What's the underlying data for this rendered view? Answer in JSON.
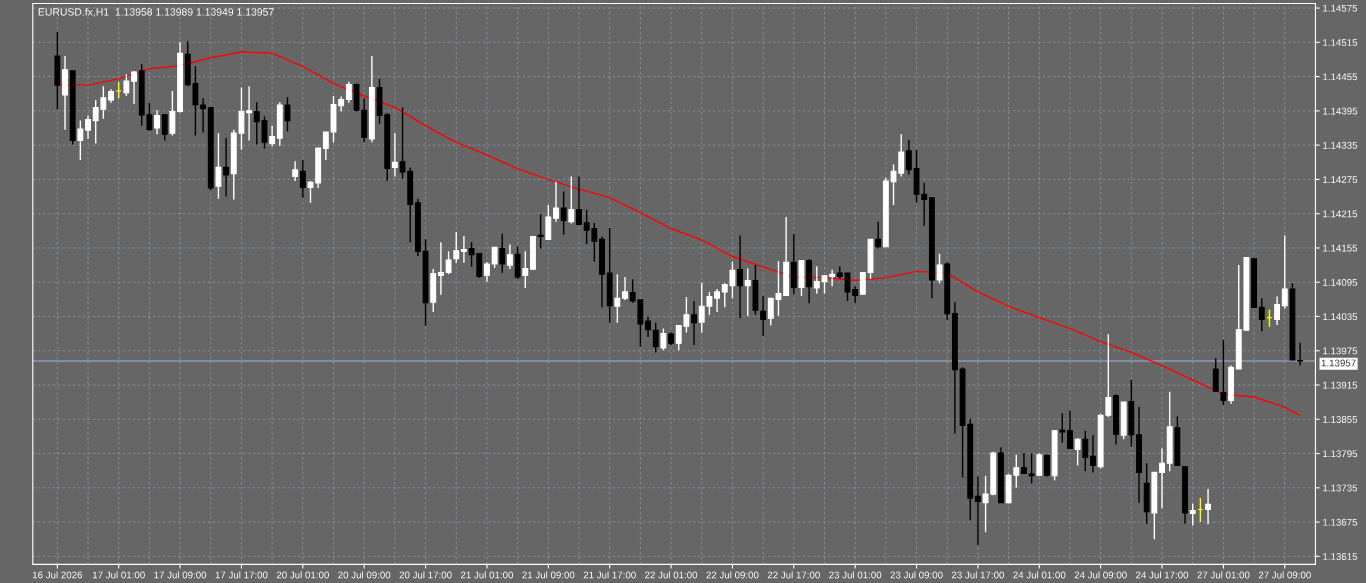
{
  "chart_data": {
    "type": "candlestick",
    "title": "EURUSD.fx,H1  1.13958 1.13989 1.13949 1.13957",
    "categories": [
      "16 Jul 2026",
      null,
      null,
      null,
      null,
      null,
      null,
      null,
      "17 Jul 01:00",
      null,
      null,
      null,
      null,
      null,
      null,
      null,
      "17 Jul 09:00",
      null,
      null,
      null,
      null,
      null,
      null,
      null,
      "17 Jul 17:00",
      null,
      null,
      null,
      null,
      null,
      null,
      null,
      "20 Jul 01:00",
      null,
      null,
      null,
      null,
      null,
      null,
      null,
      "20 Jul 09:00",
      null,
      null,
      null,
      null,
      null,
      null,
      null,
      "20 Jul 17:00",
      null,
      null,
      null,
      null,
      null,
      null,
      null,
      "21 Jul 01:00",
      null,
      null,
      null,
      null,
      null,
      null,
      null,
      "21 Jul 09:00",
      null,
      null,
      null,
      null,
      null,
      null,
      null,
      "21 Jul 17:00",
      null,
      null,
      null,
      null,
      null,
      null,
      null,
      "22 Jul 01:00",
      null,
      null,
      null,
      null,
      null,
      null,
      null,
      "22 Jul 09:00",
      null,
      null,
      null,
      null,
      null,
      null,
      null,
      "22 Jul 17:00",
      null,
      null,
      null,
      null,
      null,
      null,
      null,
      "23 Jul 01:00",
      null,
      null,
      null,
      null,
      null,
      null,
      null,
      "23 Jul 09:00",
      null,
      null,
      null,
      null,
      null,
      null,
      null,
      "23 Jul 17:00",
      null,
      null,
      null,
      null,
      null,
      null,
      null,
      "24 Jul 01:00",
      null,
      null,
      null,
      null,
      null,
      null,
      null,
      "24 Jul 09:00",
      null,
      null,
      null,
      null,
      null,
      null,
      null,
      "24 Jul 17:00",
      null,
      null,
      null,
      null,
      null,
      null,
      null,
      "27 Jul 01:00",
      null,
      null,
      null,
      null,
      null,
      null,
      null,
      "27 Jul 09:00",
      null,
      null
    ],
    "ohlc": [
      [
        1.14491,
        1.14533,
        1.14398,
        1.1444
      ],
      [
        1.14423,
        1.14491,
        1.14362,
        1.14467
      ],
      [
        1.14465,
        1.14465,
        1.14336,
        1.14343
      ],
      [
        1.14343,
        1.14378,
        1.14309,
        1.14363
      ],
      [
        1.14361,
        1.14387,
        1.14346,
        1.1438
      ],
      [
        1.14378,
        1.14414,
        1.14338,
        1.14401
      ],
      [
        1.14398,
        1.14438,
        1.14381,
        1.14418
      ],
      [
        1.14414,
        1.14433,
        1.14409,
        1.14429
      ],
      [
        1.1443,
        1.14446,
        1.14417,
        1.1443
      ],
      [
        1.14427,
        1.14459,
        1.14421,
        1.14447
      ],
      [
        1.14447,
        1.14465,
        1.14407,
        1.14463
      ],
      [
        1.14465,
        1.14477,
        1.14369,
        1.14388
      ],
      [
        1.14388,
        1.14409,
        1.14361,
        1.14362
      ],
      [
        1.14365,
        1.14396,
        1.14354,
        1.14387
      ],
      [
        1.14388,
        1.14389,
        1.14343,
        1.14354
      ],
      [
        1.14356,
        1.1443,
        1.14352,
        1.14394
      ],
      [
        1.14394,
        1.14515,
        1.14392,
        1.14496
      ],
      [
        1.14494,
        1.14517,
        1.14438,
        1.14441
      ],
      [
        1.14443,
        1.14473,
        1.14352,
        1.14406
      ],
      [
        1.14405,
        1.14417,
        1.14357,
        1.14399
      ],
      [
        1.14401,
        1.14401,
        1.14256,
        1.1426
      ],
      [
        1.14263,
        1.14356,
        1.14241,
        1.14296
      ],
      [
        1.14296,
        1.14348,
        1.14245,
        1.14283
      ],
      [
        1.14285,
        1.14362,
        1.1424,
        1.14356
      ],
      [
        1.14356,
        1.14436,
        1.14327,
        1.14394
      ],
      [
        1.14392,
        1.14438,
        1.14343,
        1.14395
      ],
      [
        1.14394,
        1.1441,
        1.14336,
        1.14376
      ],
      [
        1.14378,
        1.14385,
        1.14329,
        1.1434
      ],
      [
        1.14338,
        1.14369,
        1.14333,
        1.1435
      ],
      [
        1.14347,
        1.1441,
        1.14334,
        1.14405
      ],
      [
        1.14405,
        1.14419,
        1.14359,
        1.14378
      ],
      [
        1.1428,
        1.14307,
        1.14272,
        1.14292
      ],
      [
        1.14289,
        1.14309,
        1.14243,
        1.14261
      ],
      [
        1.14261,
        1.14272,
        1.14234,
        1.1427
      ],
      [
        1.14269,
        1.1433,
        1.1426,
        1.1433
      ],
      [
        1.14329,
        1.14358,
        1.14309,
        1.14358
      ],
      [
        1.14358,
        1.14421,
        1.1434,
        1.14406
      ],
      [
        1.14404,
        1.1442,
        1.14394,
        1.14415
      ],
      [
        1.14415,
        1.14446,
        1.14409,
        1.14441
      ],
      [
        1.14441,
        1.14443,
        1.14394,
        1.14396
      ],
      [
        1.14396,
        1.14417,
        1.1434,
        1.14349
      ],
      [
        1.14346,
        1.14491,
        1.1434,
        1.14436
      ],
      [
        1.14436,
        1.14451,
        1.14372,
        1.14387
      ],
      [
        1.14388,
        1.14391,
        1.14272,
        1.14294
      ],
      [
        1.14296,
        1.14356,
        1.1428,
        1.14305
      ],
      [
        1.14306,
        1.14401,
        1.14276,
        1.14288
      ],
      [
        1.14289,
        1.14296,
        1.14165,
        1.14231
      ],
      [
        1.14234,
        1.14241,
        1.14141,
        1.14149
      ],
      [
        1.14149,
        1.1417,
        1.14019,
        1.14059
      ],
      [
        1.1406,
        1.14118,
        1.14043,
        1.1411
      ],
      [
        1.14107,
        1.14165,
        1.14073,
        1.14112
      ],
      [
        1.14112,
        1.14149,
        1.14109,
        1.14134
      ],
      [
        1.14136,
        1.14183,
        1.14129,
        1.1415
      ],
      [
        1.14149,
        1.14176,
        1.14129,
        1.14152
      ],
      [
        1.14154,
        1.14165,
        1.14122,
        1.14143
      ],
      [
        1.14145,
        1.14145,
        1.14103,
        1.14105
      ],
      [
        1.14107,
        1.1413,
        1.14096,
        1.14127
      ],
      [
        1.14127,
        1.14156,
        1.1412,
        1.14156
      ],
      [
        1.14154,
        1.1418,
        1.14111,
        1.14127
      ],
      [
        1.14125,
        1.14161,
        1.14118,
        1.14143
      ],
      [
        1.14144,
        1.14157,
        1.14101,
        1.14104
      ],
      [
        1.14107,
        1.14149,
        1.14085,
        1.14119
      ],
      [
        1.14118,
        1.14175,
        1.14117,
        1.14175
      ],
      [
        1.14177,
        1.14214,
        1.14154,
        1.14175
      ],
      [
        1.1417,
        1.1423,
        1.14169,
        1.14209
      ],
      [
        1.14207,
        1.14271,
        1.14201,
        1.14225
      ],
      [
        1.14225,
        1.14254,
        1.14178,
        1.14203
      ],
      [
        1.14201,
        1.1428,
        1.14198,
        1.14222
      ],
      [
        1.14222,
        1.1428,
        1.14196,
        1.14196
      ],
      [
        1.14199,
        1.14222,
        1.14162,
        1.14186
      ],
      [
        1.14189,
        1.14199,
        1.14131,
        1.14167
      ],
      [
        1.1417,
        1.14175,
        1.14051,
        1.14109
      ],
      [
        1.14111,
        1.1419,
        1.14024,
        1.14054
      ],
      [
        1.14053,
        1.14109,
        1.14024,
        1.14067
      ],
      [
        1.14067,
        1.14104,
        1.14064,
        1.14078
      ],
      [
        1.14077,
        1.141,
        1.14059,
        1.14062
      ],
      [
        1.14064,
        1.14064,
        1.13982,
        1.14022
      ],
      [
        1.14027,
        1.14035,
        1.13999,
        1.14012
      ],
      [
        1.14011,
        1.14024,
        1.13972,
        1.13982
      ],
      [
        1.1398,
        1.14014,
        1.13976,
        1.14005
      ],
      [
        1.14004,
        1.14007,
        1.13985,
        1.13988
      ],
      [
        1.13988,
        1.14019,
        1.13976,
        1.14019
      ],
      [
        1.14018,
        1.14069,
        1.14007,
        1.14038
      ],
      [
        1.14038,
        1.14062,
        1.13985,
        1.14024
      ],
      [
        1.14025,
        1.14094,
        1.14007,
        1.14053
      ],
      [
        1.14053,
        1.14078,
        1.14038,
        1.1407
      ],
      [
        1.14067,
        1.14083,
        1.14043,
        1.14078
      ],
      [
        1.14078,
        1.14093,
        1.14051,
        1.14091
      ],
      [
        1.14089,
        1.14131,
        1.14067,
        1.14116
      ],
      [
        1.14117,
        1.14177,
        1.14032,
        1.14089
      ],
      [
        1.14089,
        1.14119,
        1.14036,
        1.14098
      ],
      [
        1.14098,
        1.14125,
        1.14038,
        1.14046
      ],
      [
        1.14044,
        1.14071,
        1.14001,
        1.1403
      ],
      [
        1.14032,
        1.14067,
        1.14019,
        1.14067
      ],
      [
        1.14065,
        1.14132,
        1.14036,
        1.14075
      ],
      [
        1.14072,
        1.14209,
        1.14071,
        1.1413
      ],
      [
        1.1413,
        1.1418,
        1.14074,
        1.14086
      ],
      [
        1.14086,
        1.14133,
        1.14071,
        1.14133
      ],
      [
        1.14133,
        1.14135,
        1.14058,
        1.14087
      ],
      [
        1.14085,
        1.14123,
        1.14075,
        1.14096
      ],
      [
        1.14096,
        1.14107,
        1.14075,
        1.14106
      ],
      [
        1.14105,
        1.14117,
        1.14088,
        1.14109
      ],
      [
        1.14111,
        1.14123,
        1.14101,
        1.14105
      ],
      [
        1.14111,
        1.14111,
        1.14062,
        1.14078
      ],
      [
        1.14082,
        1.14088,
        1.14058,
        1.14072
      ],
      [
        1.14074,
        1.14112,
        1.14074,
        1.14112
      ],
      [
        1.14112,
        1.1417,
        1.14101,
        1.1417
      ],
      [
        1.1417,
        1.14201,
        1.14154,
        1.14157
      ],
      [
        1.14157,
        1.14278,
        1.14157,
        1.14272
      ],
      [
        1.14271,
        1.14301,
        1.1423,
        1.14289
      ],
      [
        1.14286,
        1.14354,
        1.1428,
        1.14323
      ],
      [
        1.14325,
        1.14344,
        1.14283,
        1.14292
      ],
      [
        1.14294,
        1.14327,
        1.14234,
        1.14249
      ],
      [
        1.14249,
        1.14269,
        1.14194,
        1.1424
      ],
      [
        1.14243,
        1.14243,
        1.14067,
        1.14099
      ],
      [
        1.14099,
        1.14145,
        1.14093,
        1.14125
      ],
      [
        1.14127,
        1.1413,
        1.14029,
        1.1404
      ],
      [
        1.1404,
        1.1406,
        1.1383,
        1.13942
      ],
      [
        1.13943,
        1.13946,
        1.13753,
        1.13844
      ],
      [
        1.13846,
        1.13856,
        1.13678,
        1.13717
      ],
      [
        1.1372,
        1.13755,
        1.13635,
        1.13711
      ],
      [
        1.13709,
        1.13756,
        1.13657,
        1.13724
      ],
      [
        1.13724,
        1.13798,
        1.13722,
        1.13796
      ],
      [
        1.13796,
        1.13806,
        1.13709,
        1.13709
      ],
      [
        1.13709,
        1.13759,
        1.13708,
        1.13757
      ],
      [
        1.13757,
        1.13793,
        1.13735,
        1.1377
      ],
      [
        1.1377,
        1.13796,
        1.13759,
        1.1376
      ],
      [
        1.13759,
        1.13795,
        1.13743,
        1.13756
      ],
      [
        1.13757,
        1.13795,
        1.13756,
        1.13793
      ],
      [
        1.13792,
        1.13793,
        1.13755,
        1.13757
      ],
      [
        1.13756,
        1.13836,
        1.13748,
        1.13835
      ],
      [
        1.13836,
        1.13866,
        1.13814,
        1.13833
      ],
      [
        1.13835,
        1.1387,
        1.13804,
        1.13804
      ],
      [
        1.13802,
        1.13822,
        1.13774,
        1.1382
      ],
      [
        1.1382,
        1.13835,
        1.13764,
        1.13788
      ],
      [
        1.1379,
        1.13827,
        1.13762,
        1.13774
      ],
      [
        1.13772,
        1.13864,
        1.13769,
        1.13862
      ],
      [
        1.13862,
        1.14004,
        1.13859,
        1.13893
      ],
      [
        1.13896,
        1.13899,
        1.13811,
        1.13829
      ],
      [
        1.13827,
        1.13885,
        1.1382,
        1.13885
      ],
      [
        1.13886,
        1.13924,
        1.13807,
        1.13828
      ],
      [
        1.13828,
        1.13877,
        1.13709,
        1.13762
      ],
      [
        1.13743,
        1.13778,
        1.13672,
        1.13693
      ],
      [
        1.13691,
        1.13762,
        1.13645,
        1.13762
      ],
      [
        1.13762,
        1.13804,
        1.13699,
        1.13778
      ],
      [
        1.13778,
        1.13903,
        1.13764,
        1.13842
      ],
      [
        1.1384,
        1.1386,
        1.13774,
        1.13774
      ],
      [
        1.13772,
        1.13772,
        1.13672,
        1.13691
      ],
      [
        1.1369,
        1.13707,
        1.13669,
        1.13695
      ],
      [
        1.13697,
        1.13717,
        1.13675,
        1.13697
      ],
      [
        1.13697,
        1.13733,
        1.13671,
        1.13706
      ],
      [
        1.13943,
        1.13962,
        1.13903,
        1.13904
      ],
      [
        1.13902,
        1.13994,
        1.1388,
        1.13888
      ],
      [
        1.13888,
        1.13949,
        1.13882,
        1.13946
      ],
      [
        1.13943,
        1.14125,
        1.13943,
        1.14012
      ],
      [
        1.14011,
        1.14138,
        1.14011,
        1.14138
      ],
      [
        1.14136,
        1.14138,
        1.14051,
        1.14051
      ],
      [
        1.14051,
        1.14067,
        1.14009,
        1.1403
      ],
      [
        1.14033,
        1.14047,
        1.14017,
        1.14033
      ],
      [
        1.1403,
        1.1407,
        1.1402,
        1.14056
      ],
      [
        1.14054,
        1.14177,
        1.14049,
        1.14083
      ],
      [
        1.14083,
        1.14093,
        1.13959,
        1.13959
      ],
      [
        1.13958,
        1.13989,
        1.13949,
        1.13957
      ]
    ],
    "colors": [
      "#000000",
      "#ffffff",
      "#000000",
      "#ffffff",
      "#ffffff",
      "#ffffff",
      "#ffffff",
      "#ffffff",
      "#ffff00",
      "#ffffff",
      "#ffffff",
      "#000000",
      "#000000",
      "#ffffff",
      "#000000",
      "#ffffff",
      "#ffffff",
      "#000000",
      "#000000",
      "#000000",
      "#000000",
      "#ffffff",
      "#000000",
      "#ffffff",
      "#ffffff",
      "#ffffff",
      "#000000",
      "#000000",
      "#ffffff",
      "#ffffff",
      "#000000",
      "#ffffff",
      "#000000",
      "#ffffff",
      "#ffffff",
      "#ffffff",
      "#ffffff",
      "#ffffff",
      "#ffffff",
      "#000000",
      "#000000",
      "#ffffff",
      "#000000",
      "#000000",
      "#ffffff",
      "#000000",
      "#000000",
      "#000000",
      "#000000",
      "#ffffff",
      "#ffffff",
      "#ffffff",
      "#ffffff",
      "#ffffff",
      "#000000",
      "#000000",
      "#ffffff",
      "#ffffff",
      "#000000",
      "#ffffff",
      "#000000",
      "#ffffff",
      "#ffffff",
      "#000000",
      "#ffffff",
      "#ffffff",
      "#000000",
      "#ffffff",
      "#000000",
      "#000000",
      "#000000",
      "#000000",
      "#000000",
      "#ffffff",
      "#ffffff",
      "#000000",
      "#000000",
      "#000000",
      "#000000",
      "#ffffff",
      "#000000",
      "#ffffff",
      "#ffffff",
      "#000000",
      "#ffffff",
      "#ffffff",
      "#ffffff",
      "#ffffff",
      "#ffffff",
      "#000000",
      "#ffffff",
      "#000000",
      "#000000",
      "#ffffff",
      "#ffffff",
      "#ffffff",
      "#000000",
      "#ffffff",
      "#000000",
      "#ffffff",
      "#ffffff",
      "#ffffff",
      "#000000",
      "#000000",
      "#000000",
      "#ffffff",
      "#ffffff",
      "#000000",
      "#ffffff",
      "#ffffff",
      "#ffffff",
      "#000000",
      "#000000",
      "#000000",
      "#000000",
      "#ffffff",
      "#000000",
      "#000000",
      "#000000",
      "#000000",
      "#000000",
      "#ffffff",
      "#ffffff",
      "#000000",
      "#ffffff",
      "#ffffff",
      "#000000",
      "#000000",
      "#ffffff",
      "#000000",
      "#ffffff",
      "#000000",
      "#000000",
      "#ffffff",
      "#000000",
      "#000000",
      "#ffffff",
      "#ffffff",
      "#000000",
      "#ffffff",
      "#000000",
      "#000000",
      "#000000",
      "#ffffff",
      "#ffffff",
      "#ffffff",
      "#000000",
      "#000000",
      "#ffffff",
      "#ffff00",
      "#ffffff",
      "#000000",
      "#000000",
      "#ffffff",
      "#ffffff",
      "#ffffff",
      "#000000",
      "#000000",
      "#ffff00",
      "#ffffff",
      "#ffffff",
      "#000000",
      "#000000"
    ],
    "series": [
      {
        "type": "line",
        "color": "#ff0000",
        "values": [
          1.14441,
          null,
          null,
          null,
          1.1444,
          null,
          null,
          null,
          1.14451,
          null,
          null,
          null,
          1.14469,
          null,
          null,
          null,
          1.14474,
          null,
          null,
          null,
          1.14488,
          null,
          null,
          null,
          1.14498,
          null,
          null,
          null,
          1.14496,
          null,
          null,
          null,
          1.14473,
          null,
          null,
          null,
          1.14443,
          null,
          null,
          null,
          1.14421,
          null,
          null,
          null,
          1.14401,
          null,
          null,
          null,
          1.14369,
          null,
          null,
          null,
          1.1434,
          null,
          null,
          null,
          1.14318,
          null,
          null,
          null,
          1.14294,
          null,
          null,
          null,
          1.14275,
          null,
          null,
          null,
          1.14258,
          null,
          null,
          null,
          1.14243,
          null,
          null,
          null,
          1.14217,
          null,
          null,
          null,
          1.14189,
          null,
          null,
          null,
          1.14169,
          null,
          null,
          null,
          1.1414,
          null,
          null,
          null,
          1.14122,
          null,
          null,
          null,
          1.14104,
          null,
          null,
          null,
          1.14103,
          null,
          null,
          null,
          1.14098,
          null,
          null,
          null,
          1.14103,
          null,
          null,
          null,
          1.14114,
          null,
          null,
          null,
          1.14111,
          null,
          null,
          null,
          1.14078,
          null,
          null,
          null,
          1.14053,
          null,
          null,
          null,
          1.14033,
          null,
          null,
          null,
          1.14014,
          null,
          null,
          null,
          1.13991,
          null,
          null,
          null,
          1.13972,
          null,
          null,
          null,
          1.13949,
          null,
          null,
          null,
          1.13924,
          null,
          null,
          null,
          1.13899,
          null,
          null,
          null,
          1.13894,
          null,
          null,
          null,
          1.13876,
          null,
          1.13862
        ]
      }
    ],
    "ylim": [
      1.13601,
      1.14583
    ],
    "yticks": [
      1.13615,
      1.13675,
      1.13735,
      1.13795,
      1.13855,
      1.13915,
      1.13975,
      1.14035,
      1.14095,
      1.14155,
      1.14215,
      1.14275,
      1.14335,
      1.14395,
      1.14455,
      1.14515,
      1.14575
    ],
    "grid": true,
    "ref_lines": [
      {
        "axis": "y",
        "value": 1.13957,
        "label": "1.13957",
        "color": "#8a9bb0"
      }
    ]
  }
}
